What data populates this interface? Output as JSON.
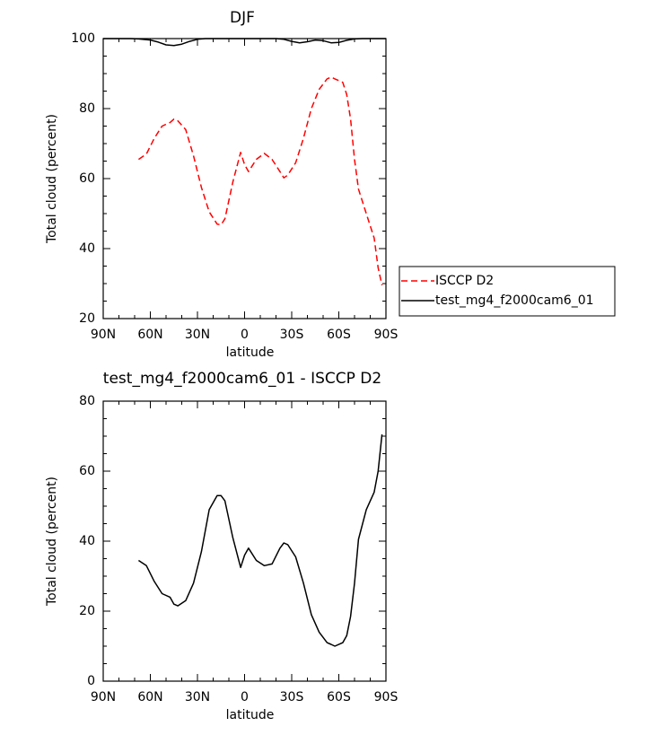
{
  "chart_data": [
    {
      "type": "line",
      "title": "DJF",
      "xlabel": "latitude",
      "ylabel": "Total cloud (percent)",
      "xlim": [
        90,
        -90
      ],
      "ylim": [
        20,
        100
      ],
      "x_ticks": [
        90,
        60,
        30,
        0,
        -30,
        -60,
        -90
      ],
      "x_tick_labels": [
        "90N",
        "60N",
        "30N",
        "0",
        "30S",
        "60S",
        "90S"
      ],
      "y_ticks": [
        20,
        40,
        60,
        80,
        100
      ],
      "y_tick_labels": [
        "20",
        "40",
        "60",
        "80",
        "100"
      ],
      "legend_position": "right",
      "series": [
        {
          "name": "ISCCP D2",
          "color": "#ff0000",
          "dash": "dashed",
          "x": [
            67.5,
            62.5,
            57.5,
            52.5,
            47.5,
            45,
            42.5,
            37.5,
            32.5,
            27.5,
            22.5,
            17.5,
            15,
            12.5,
            7.5,
            2.5,
            0,
            -2.5,
            -7.5,
            -12.5,
            -17.5,
            -22.5,
            -25,
            -27.5,
            -32.5,
            -37.5,
            -42.5,
            -47.5,
            -52.5,
            -55,
            -57.5,
            -62.5,
            -65,
            -67.5,
            -70,
            -72.5,
            -77.5,
            -82.5,
            -85,
            -87.5
          ],
          "y": [
            65.5,
            67,
            71.5,
            75,
            76,
            77,
            76.5,
            74,
            66.5,
            57.5,
            50.5,
            47,
            46.8,
            48.5,
            59,
            67.5,
            64,
            62,
            65.5,
            67.2,
            65.5,
            62,
            60.2,
            61,
            64.5,
            71.5,
            80,
            85.5,
            88.5,
            89,
            88.5,
            87.5,
            84,
            77,
            65.5,
            57,
            50,
            43,
            34.5,
            29.5
          ]
        },
        {
          "name": "test_mg4_f2000cam6_01",
          "color": "#000000",
          "dash": "solid",
          "x": [
            90,
            72.5,
            67.5,
            60,
            55,
            50,
            45,
            40,
            35,
            30,
            25,
            20,
            0,
            -20,
            -25,
            -30,
            -35,
            -40,
            -45,
            -50,
            -55,
            -60,
            -65,
            -70,
            -75,
            -90
          ],
          "y": [
            100,
            100,
            99.9,
            99.6,
            99.0,
            98.2,
            98.0,
            98.4,
            99.2,
            99.8,
            100,
            100,
            100,
            100,
            99.8,
            99.2,
            98.8,
            99.1,
            99.6,
            99.4,
            98.8,
            98.9,
            99.5,
            99.9,
            100,
            100
          ]
        }
      ]
    },
    {
      "type": "line",
      "title": "test_mg4_f2000cam6_01 - ISCCP D2",
      "xlabel": "latitude",
      "ylabel": "Total cloud (percent)",
      "xlim": [
        90,
        -90
      ],
      "ylim": [
        0,
        80
      ],
      "x_ticks": [
        90,
        60,
        30,
        0,
        -30,
        -60,
        -90
      ],
      "x_tick_labels": [
        "90N",
        "60N",
        "30N",
        "0",
        "30S",
        "60S",
        "90S"
      ],
      "y_ticks": [
        0,
        20,
        40,
        60,
        80
      ],
      "y_tick_labels": [
        "0",
        "20",
        "40",
        "60",
        "80"
      ],
      "series": [
        {
          "color": "#000000",
          "dash": "solid",
          "x": [
            67.5,
            62.5,
            57.5,
            52.5,
            47.5,
            45,
            42.5,
            37.5,
            32.5,
            27.5,
            22.5,
            17.5,
            15,
            12.5,
            7.5,
            2.5,
            0,
            -2.5,
            -7.5,
            -12.5,
            -17.5,
            -22.5,
            -25,
            -27.5,
            -32.5,
            -37.5,
            -42.5,
            -47.5,
            -52.5,
            -55,
            -57.5,
            -62.5,
            -65,
            -67.5,
            -70,
            -72.5,
            -77.5,
            -82.5,
            -85,
            -87.5
          ],
          "y": [
            34.5,
            33,
            28.5,
            25,
            24,
            22,
            21.5,
            23,
            28,
            37,
            49,
            53,
            53,
            51.5,
            41,
            32.5,
            36,
            38,
            34.5,
            33,
            33.5,
            38,
            39.5,
            39,
            35.5,
            28,
            19,
            14,
            11,
            10.5,
            10,
            11,
            13,
            18.5,
            28,
            40.5,
            49,
            54,
            60,
            70.5
          ]
        }
      ]
    }
  ]
}
